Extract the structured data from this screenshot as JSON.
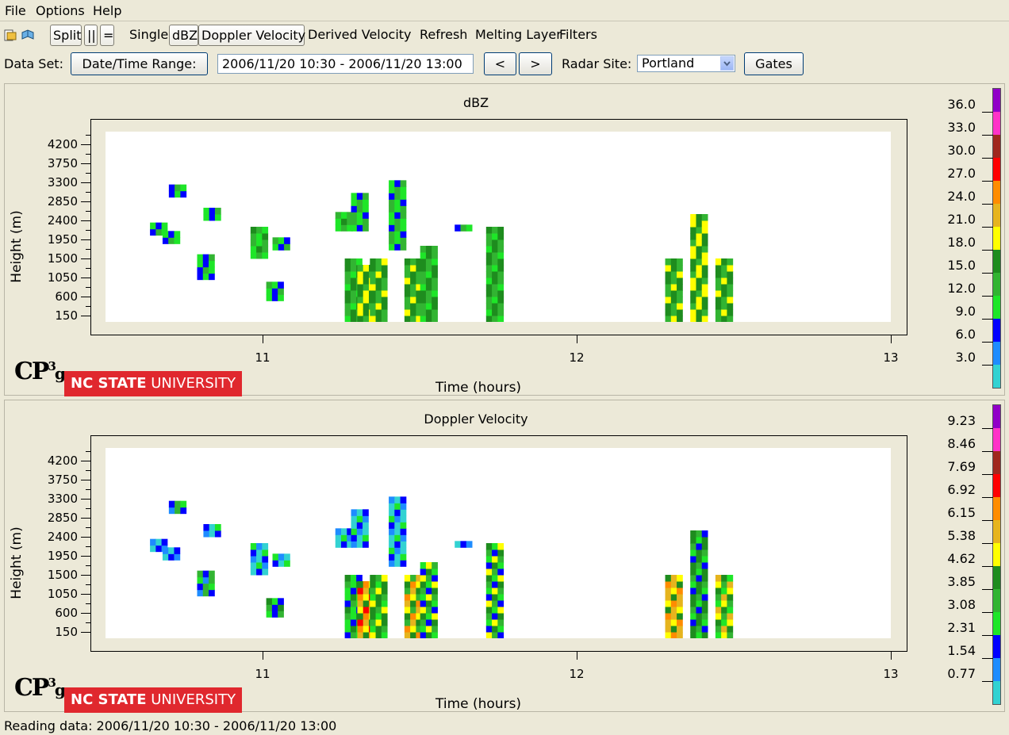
{
  "menu": [
    "File",
    "Options",
    "Help"
  ],
  "toolbar": {
    "icons": [
      "open-file-icon",
      "open-book-icon"
    ],
    "split_label": "Split",
    "side_label": "||",
    "stack_label": "=",
    "single_label": "Single",
    "dbz_label": "dBZ",
    "doppler_label": "Doppler Velocity",
    "derived_label": "Derived Velocity",
    "refresh_label": "Refresh",
    "melting_label": "Melting Layer",
    "filters_label": "Filters"
  },
  "dataset": {
    "label": "Data Set:",
    "range_button": "Date/Time Range:",
    "range_value": "2006/11/20 10:30 - 2006/11/20 13:00",
    "prev_label": "<",
    "next_label": ">",
    "site_label": "Radar Site:",
    "site_value": "Portland",
    "gates_label": "Gates"
  },
  "chart_data": [
    {
      "type": "heatmap",
      "title": "dBZ",
      "xlabel": "Time (hours)",
      "ylabel": "Height (m)",
      "x_ticks": [
        "11",
        "12",
        "13"
      ],
      "y_ticks": [
        "4200",
        "3750",
        "3300",
        "2850",
        "2400",
        "1950",
        "1500",
        "1050",
        "600",
        "150"
      ],
      "xlim": [
        10.5,
        13.0
      ],
      "ylim": [
        0,
        4500
      ],
      "colorbar": {
        "labels": [
          "36.0",
          "33.0",
          "30.0",
          "27.0",
          "24.0",
          "21.0",
          "18.0",
          "15.0",
          "12.0",
          "9.0",
          "6.0",
          "3.0"
        ],
        "colors": [
          "#9100c8",
          "#ff33c8",
          "#a0281e",
          "#ff0000",
          "#ff8c00",
          "#e6b41e",
          "#ffff00",
          "#1e8c1e",
          "#32b432",
          "#1ee628",
          "#0000ff",
          "#1e8cff",
          "#32d2d2"
        ]
      },
      "echoes": [
        {
          "t": 10.72,
          "h": [
            2950,
            3200
          ],
          "v": 10
        },
        {
          "t": 10.66,
          "h": [
            2050,
            2300
          ],
          "v": 10
        },
        {
          "t": 10.7,
          "h": [
            1850,
            2100
          ],
          "v": 10
        },
        {
          "t": 10.83,
          "h": [
            2400,
            2700
          ],
          "v": 10
        },
        {
          "t": 10.81,
          "h": [
            1000,
            1500
          ],
          "v": 10
        },
        {
          "t": 10.98,
          "h": [
            1500,
            2150
          ],
          "v": 13
        },
        {
          "t": 11.05,
          "h": [
            1700,
            2000
          ],
          "v": 10
        },
        {
          "t": 11.03,
          "h": [
            500,
            950
          ],
          "v": 10
        },
        {
          "t": 11.25,
          "h": [
            2150,
            2600
          ],
          "v": 13
        },
        {
          "t": 11.3,
          "h": [
            2150,
            2950
          ],
          "v": 11
        },
        {
          "t": 11.28,
          "h": [
            0,
            1500
          ],
          "v": 14
        },
        {
          "t": 11.32,
          "h": [
            0,
            1300
          ],
          "v": 17
        },
        {
          "t": 11.36,
          "h": [
            0,
            1500
          ],
          "v": 15
        },
        {
          "t": 11.42,
          "h": [
            1700,
            3350
          ],
          "v": 11
        },
        {
          "t": 11.47,
          "h": [
            0,
            1400
          ],
          "v": 15
        },
        {
          "t": 11.52,
          "h": [
            0,
            1700
          ],
          "v": 14
        },
        {
          "t": 11.63,
          "h": [
            2150,
            2300
          ],
          "v": 10
        },
        {
          "t": 11.73,
          "h": [
            0,
            2200
          ],
          "v": 14
        },
        {
          "t": 12.3,
          "h": [
            0,
            1450
          ],
          "v": 16
        },
        {
          "t": 12.38,
          "h": [
            0,
            2450
          ],
          "v": 17
        },
        {
          "t": 12.46,
          "h": [
            0,
            1400
          ],
          "v": 16
        }
      ]
    },
    {
      "type": "heatmap",
      "title": "Doppler Velocity",
      "xlabel": "Time (hours)",
      "ylabel": "Height (m)",
      "x_ticks": [
        "11",
        "12",
        "13"
      ],
      "y_ticks": [
        "4200",
        "3750",
        "3300",
        "2850",
        "2400",
        "1950",
        "1500",
        "1050",
        "600",
        "150"
      ],
      "xlim": [
        10.5,
        13.0
      ],
      "ylim": [
        0,
        4500
      ],
      "colorbar": {
        "labels": [
          "9.23",
          "8.46",
          "7.69",
          "6.92",
          "6.15",
          "5.38",
          "4.62",
          "3.85",
          "3.08",
          "2.31",
          "1.54",
          "0.77"
        ],
        "colors": [
          "#9100c8",
          "#ff33c8",
          "#a0281e",
          "#ff0000",
          "#ff8c00",
          "#e6b41e",
          "#ffff00",
          "#1e8c1e",
          "#32b432",
          "#1ee628",
          "#0000ff",
          "#1e8cff",
          "#32d2d2"
        ]
      },
      "echoes": [
        {
          "t": 10.72,
          "h": [
            2950,
            3200
          ],
          "v": 2.5
        },
        {
          "t": 10.66,
          "h": [
            2050,
            2300
          ],
          "v": 1.0
        },
        {
          "t": 10.7,
          "h": [
            1850,
            2100
          ],
          "v": 1.0
        },
        {
          "t": 10.83,
          "h": [
            2400,
            2700
          ],
          "v": 1.2
        },
        {
          "t": 10.81,
          "h": [
            1000,
            1500
          ],
          "v": 2.5
        },
        {
          "t": 10.98,
          "h": [
            1500,
            2150
          ],
          "v": 1.2
        },
        {
          "t": 11.05,
          "h": [
            1700,
            2000
          ],
          "v": 1.2
        },
        {
          "t": 11.03,
          "h": [
            500,
            950
          ],
          "v": 2.8
        },
        {
          "t": 11.25,
          "h": [
            2150,
            2600
          ],
          "v": 1.2
        },
        {
          "t": 11.3,
          "h": [
            2150,
            2950
          ],
          "v": 1.2
        },
        {
          "t": 11.28,
          "h": [
            0,
            1500
          ],
          "v": 3.0
        },
        {
          "t": 11.32,
          "h": [
            0,
            1300
          ],
          "v": 5.8
        },
        {
          "t": 11.36,
          "h": [
            0,
            1500
          ],
          "v": 4.0
        },
        {
          "t": 11.42,
          "h": [
            1700,
            3350
          ],
          "v": 1.2
        },
        {
          "t": 11.47,
          "h": [
            0,
            1400
          ],
          "v": 5.0
        },
        {
          "t": 11.52,
          "h": [
            0,
            1700
          ],
          "v": 3.5
        },
        {
          "t": 11.63,
          "h": [
            2150,
            2300
          ],
          "v": 1.0
        },
        {
          "t": 11.73,
          "h": [
            0,
            2200
          ],
          "v": 3.5
        },
        {
          "t": 12.3,
          "h": [
            0,
            1450
          ],
          "v": 5.5
        },
        {
          "t": 12.38,
          "h": [
            0,
            2450
          ],
          "v": 3.3
        },
        {
          "t": 12.46,
          "h": [
            0,
            1400
          ],
          "v": 4.2
        }
      ]
    }
  ],
  "logos": {
    "cp": "CP",
    "cp_sup": "3",
    "cp_sub": "g",
    "ncsu_bold": "NC STATE",
    "ncsu_light": " UNIVERSITY"
  },
  "status": "Reading data: 2006/11/20 10:30 - 2006/11/20 13:00"
}
